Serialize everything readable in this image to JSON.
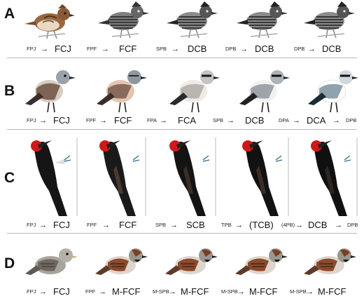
{
  "panels": [
    {
      "letter": "A",
      "sequence": [
        "FPJ",
        "→",
        "FCJ",
        "FPF",
        "→",
        "FCF",
        "SPB",
        "→",
        "DCB",
        "DPB",
        "→",
        "DCB",
        "DPB",
        "→",
        "DCB"
      ]
    },
    {
      "letter": "B",
      "sequence": [
        "FPJ",
        "→",
        "FCJ",
        "FPF",
        "→",
        "FCF",
        "FPA",
        "→",
        "FCA",
        "SPB",
        "→",
        "DCB",
        "DPA",
        "→",
        "DCA",
        "→",
        "DPB"
      ]
    },
    {
      "letter": "C",
      "sequence": [
        "FPJ",
        "→",
        "FCJ",
        "FPF",
        "→",
        "FCF",
        "SPB",
        "→",
        "SCB",
        "TPB",
        "→",
        "(TCB)",
        "(4PB)",
        "→",
        "DCB",
        "→",
        "DPB"
      ]
    },
    {
      "letter": "D",
      "sequence": [
        "FPJ",
        "→",
        "FCJ",
        "FPF",
        "→",
        "M-FCF",
        "M-SPB",
        "→",
        "M-FCF",
        "M-SPB",
        "→",
        "M-FCF",
        "M-SPB",
        "→",
        "M-FCF"
      ]
    }
  ],
  "colors": {
    "antshrike_brown": "#8a5a36",
    "antshrike_barred": "#4a4a4a",
    "wheatear_grey": "#9aa3ab",
    "woodpecker_black": "#151515",
    "woodpecker_red": "#d01818",
    "sparrow_brown": "#8b4a2c",
    "divider": "#b9b9b9"
  }
}
